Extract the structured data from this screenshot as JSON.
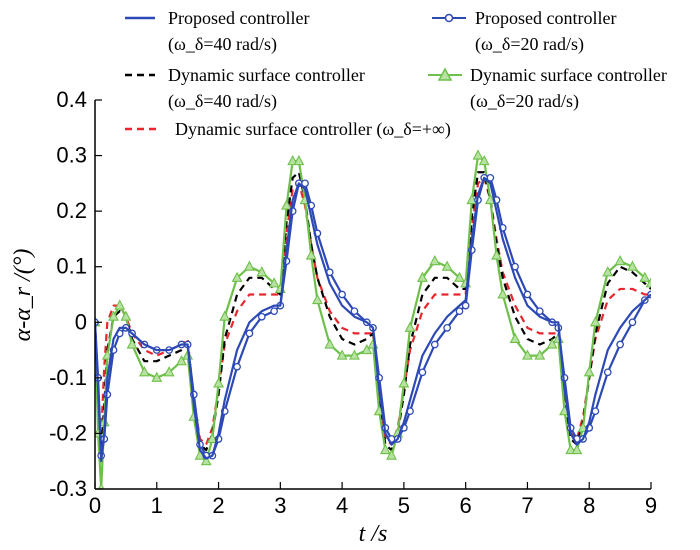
{
  "chart_data": {
    "type": "line",
    "xlabel": "t /s",
    "ylabel": "α-α_r /(°)",
    "xlim": [
      0,
      9
    ],
    "ylim": [
      -0.3,
      0.4
    ],
    "x_ticks": [
      "0",
      "1",
      "2",
      "3",
      "4",
      "5",
      "6",
      "7",
      "8",
      "9"
    ],
    "y_ticks": [
      "-0.3",
      "-0.2",
      "-0.1",
      "0",
      "0.1",
      "0.2",
      "0.3",
      "0.4"
    ],
    "grid": false,
    "legend_placement": "top",
    "legend": [
      {
        "line1": "Proposed controller",
        "line2": "(ω_δ=40 rad/s)"
      },
      {
        "line1": "Proposed controller",
        "line2": "(ω_δ=20 rad/s)"
      },
      {
        "line1": "Dynamic surface controller",
        "line2": "(ω_δ=40 rad/s)"
      },
      {
        "line1": "Dynamic surface controller",
        "line2": "(ω_δ=20 rad/s)"
      },
      {
        "line1": "Dynamic surface controller (ω_δ=+∞)",
        "line2": ""
      }
    ],
    "series": [
      {
        "name": "Proposed controller (ω_δ=40 rad/s)",
        "color": "#2d49b5",
        "style": "solid",
        "marker": "none",
        "x": [
          0,
          0.05,
          0.1,
          0.15,
          0.2,
          0.3,
          0.4,
          0.5,
          0.6,
          0.8,
          1,
          1.2,
          1.4,
          1.5,
          1.6,
          1.7,
          1.8,
          1.9,
          2,
          2.1,
          2.3,
          2.5,
          2.7,
          2.9,
          3,
          3.1,
          3.2,
          3.3,
          3.4,
          3.5,
          3.6,
          3.8,
          4,
          4.2,
          4.4,
          4.5,
          4.6,
          4.7,
          4.8,
          4.9,
          5,
          5.1,
          5.3,
          5.5,
          5.7,
          5.9,
          6,
          6.1,
          6.2,
          6.3,
          6.4,
          6.5,
          6.6,
          6.8,
          7,
          7.2,
          7.4,
          7.5,
          7.6,
          7.7,
          7.8,
          7.9,
          8,
          8.1,
          8.3,
          8.5,
          8.7,
          8.9,
          9
        ],
        "y": [
          0,
          -0.12,
          -0.25,
          -0.2,
          -0.1,
          -0.03,
          -0.01,
          -0.01,
          -0.02,
          -0.04,
          -0.05,
          -0.05,
          -0.04,
          -0.04,
          -0.15,
          -0.23,
          -0.245,
          -0.24,
          -0.2,
          -0.14,
          -0.05,
          0,
          0.02,
          0.03,
          0.03,
          0.13,
          0.22,
          0.25,
          0.24,
          0.19,
          0.14,
          0.07,
          0.03,
          0.01,
          0,
          -0.01,
          -0.12,
          -0.2,
          -0.22,
          -0.21,
          -0.18,
          -0.14,
          -0.06,
          -0.02,
          0.01,
          0.03,
          0.04,
          0.15,
          0.23,
          0.26,
          0.25,
          0.2,
          0.15,
          0.08,
          0.03,
          0.01,
          0,
          0,
          -0.12,
          -0.2,
          -0.22,
          -0.21,
          -0.18,
          -0.13,
          -0.05,
          -0.01,
          0.02,
          0.04,
          0.05
        ]
      },
      {
        "name": "Proposed controller (ω_δ=20 rad/s)",
        "color": "#2d49b5",
        "style": "solid",
        "marker": "circle",
        "x": [
          0,
          0.05,
          0.1,
          0.15,
          0.2,
          0.3,
          0.4,
          0.5,
          0.6,
          0.8,
          1,
          1.2,
          1.4,
          1.5,
          1.6,
          1.7,
          1.8,
          1.9,
          2,
          2.1,
          2.3,
          2.5,
          2.7,
          2.9,
          3,
          3.1,
          3.2,
          3.3,
          3.4,
          3.5,
          3.6,
          3.8,
          4,
          4.2,
          4.4,
          4.5,
          4.6,
          4.7,
          4.8,
          4.9,
          5,
          5.1,
          5.3,
          5.5,
          5.7,
          5.9,
          6,
          6.1,
          6.2,
          6.3,
          6.4,
          6.5,
          6.6,
          6.8,
          7,
          7.2,
          7.4,
          7.5,
          7.6,
          7.7,
          7.8,
          7.9,
          8,
          8.1,
          8.3,
          8.5,
          8.7,
          8.9,
          9
        ],
        "y": [
          0,
          -0.1,
          -0.24,
          -0.21,
          -0.13,
          -0.05,
          -0.02,
          -0.01,
          -0.02,
          -0.04,
          -0.05,
          -0.05,
          -0.04,
          -0.04,
          -0.13,
          -0.22,
          -0.24,
          -0.24,
          -0.21,
          -0.16,
          -0.08,
          -0.02,
          0.01,
          0.02,
          0.03,
          0.11,
          0.2,
          0.25,
          0.25,
          0.21,
          0.16,
          0.09,
          0.05,
          0.02,
          0,
          -0.01,
          -0.1,
          -0.19,
          -0.21,
          -0.21,
          -0.19,
          -0.16,
          -0.09,
          -0.04,
          -0.01,
          0.02,
          0.03,
          0.13,
          0.22,
          0.26,
          0.26,
          0.22,
          0.17,
          0.1,
          0.05,
          0.02,
          0,
          -0.01,
          -0.1,
          -0.19,
          -0.21,
          -0.21,
          -0.19,
          -0.16,
          -0.09,
          -0.04,
          0,
          0.04,
          0.05
        ]
      },
      {
        "name": "Dynamic surface controller (ω_δ=40 rad/s)",
        "color": "#000000",
        "style": "dashed",
        "marker": "none",
        "x": [
          0,
          0.05,
          0.1,
          0.15,
          0.2,
          0.3,
          0.4,
          0.5,
          0.6,
          0.8,
          1,
          1.2,
          1.4,
          1.5,
          1.6,
          1.7,
          1.8,
          1.9,
          2,
          2.1,
          2.3,
          2.5,
          2.7,
          2.9,
          3,
          3.1,
          3.2,
          3.3,
          3.4,
          3.5,
          3.6,
          3.8,
          4,
          4.2,
          4.4,
          4.5,
          4.6,
          4.7,
          4.8,
          4.9,
          5,
          5.1,
          5.3,
          5.5,
          5.7,
          5.9,
          6,
          6.1,
          6.2,
          6.3,
          6.4,
          6.5,
          6.6,
          6.8,
          7,
          7.2,
          7.4,
          7.5,
          7.6,
          7.7,
          7.8,
          7.9,
          8,
          8.1,
          8.3,
          8.5,
          8.7,
          8.9,
          9
        ],
        "y": [
          0,
          -0.15,
          -0.23,
          -0.15,
          -0.05,
          0.01,
          0.02,
          0.01,
          -0.03,
          -0.07,
          -0.07,
          -0.06,
          -0.05,
          -0.04,
          -0.15,
          -0.22,
          -0.23,
          -0.2,
          -0.13,
          -0.03,
          0.05,
          0.08,
          0.08,
          0.06,
          0.05,
          0.18,
          0.26,
          0.27,
          0.22,
          0.14,
          0.08,
          0.01,
          -0.03,
          -0.04,
          -0.03,
          -0.02,
          -0.14,
          -0.22,
          -0.23,
          -0.2,
          -0.13,
          -0.04,
          0.05,
          0.08,
          0.08,
          0.06,
          0.06,
          0.19,
          0.27,
          0.27,
          0.22,
          0.14,
          0.08,
          0.01,
          -0.03,
          -0.04,
          -0.03,
          -0.02,
          -0.14,
          -0.21,
          -0.22,
          -0.18,
          -0.1,
          -0.02,
          0.07,
          0.1,
          0.09,
          0.07,
          0.06
        ]
      },
      {
        "name": "Dynamic surface controller (ω_δ=20 rad/s)",
        "color": "#6ec04a",
        "style": "solid",
        "marker": "triangle",
        "x": [
          0,
          0.05,
          0.1,
          0.15,
          0.2,
          0.3,
          0.4,
          0.5,
          0.6,
          0.8,
          1,
          1.2,
          1.4,
          1.5,
          1.6,
          1.7,
          1.8,
          1.9,
          2,
          2.1,
          2.3,
          2.5,
          2.7,
          2.9,
          3,
          3.1,
          3.2,
          3.3,
          3.4,
          3.5,
          3.6,
          3.8,
          4,
          4.2,
          4.4,
          4.5,
          4.6,
          4.7,
          4.8,
          4.9,
          5,
          5.1,
          5.3,
          5.5,
          5.7,
          5.9,
          6,
          6.1,
          6.2,
          6.3,
          6.4,
          6.5,
          6.6,
          6.8,
          7,
          7.2,
          7.4,
          7.5,
          7.6,
          7.7,
          7.8,
          7.9,
          8,
          8.1,
          8.3,
          8.5,
          8.7,
          8.9,
          9
        ],
        "y": [
          0,
          -0.2,
          -0.3,
          -0.18,
          -0.06,
          0.01,
          0.03,
          0.01,
          -0.04,
          -0.09,
          -0.1,
          -0.09,
          -0.07,
          -0.06,
          -0.17,
          -0.24,
          -0.25,
          -0.21,
          -0.11,
          0.01,
          0.08,
          0.1,
          0.09,
          0.07,
          0.06,
          0.21,
          0.29,
          0.29,
          0.22,
          0.12,
          0.04,
          -0.04,
          -0.06,
          -0.06,
          -0.05,
          -0.04,
          -0.16,
          -0.23,
          -0.24,
          -0.2,
          -0.11,
          -0.01,
          0.08,
          0.11,
          0.1,
          0.08,
          0.07,
          0.22,
          0.3,
          0.29,
          0.22,
          0.12,
          0.05,
          -0.03,
          -0.06,
          -0.06,
          -0.04,
          -0.03,
          -0.16,
          -0.23,
          -0.23,
          -0.19,
          -0.09,
          0,
          0.09,
          0.11,
          0.1,
          0.08,
          0.07
        ]
      },
      {
        "name": "Dynamic surface controller (ω_δ=+∞)",
        "color": "#e8262d",
        "style": "dashed",
        "marker": "none",
        "x": [
          0,
          0.05,
          0.1,
          0.15,
          0.2,
          0.3,
          0.4,
          0.5,
          0.6,
          0.8,
          1,
          1.2,
          1.4,
          1.5,
          1.6,
          1.7,
          1.8,
          1.9,
          2,
          2.1,
          2.3,
          2.5,
          2.7,
          2.9,
          3,
          3.1,
          3.2,
          3.3,
          3.4,
          3.5,
          3.6,
          3.8,
          4,
          4.2,
          4.4,
          4.5,
          4.6,
          4.7,
          4.8,
          4.9,
          5,
          5.1,
          5.3,
          5.5,
          5.7,
          5.9,
          6,
          6.1,
          6.2,
          6.3,
          6.4,
          6.5,
          6.6,
          6.8,
          7,
          7.2,
          7.4,
          7.5,
          7.6,
          7.7,
          7.8,
          7.9,
          8,
          8.1,
          8.3,
          8.5,
          8.7,
          8.9,
          9
        ],
        "y": [
          0,
          -0.13,
          -0.2,
          -0.08,
          0,
          0.03,
          0.03,
          0.01,
          -0.02,
          -0.05,
          -0.06,
          -0.05,
          -0.04,
          -0.03,
          -0.14,
          -0.21,
          -0.22,
          -0.19,
          -0.12,
          -0.04,
          0.02,
          0.05,
          0.05,
          0.05,
          0.05,
          0.16,
          0.24,
          0.25,
          0.21,
          0.14,
          0.08,
          0.02,
          -0.01,
          -0.02,
          -0.02,
          -0.02,
          -0.13,
          -0.21,
          -0.22,
          -0.19,
          -0.12,
          -0.05,
          0.02,
          0.05,
          0.05,
          0.05,
          0.05,
          0.17,
          0.25,
          0.26,
          0.22,
          0.15,
          0.09,
          0.03,
          -0.01,
          -0.02,
          -0.02,
          -0.02,
          -0.13,
          -0.2,
          -0.21,
          -0.17,
          -0.1,
          -0.03,
          0.04,
          0.06,
          0.06,
          0.05,
          0.05
        ]
      }
    ]
  }
}
